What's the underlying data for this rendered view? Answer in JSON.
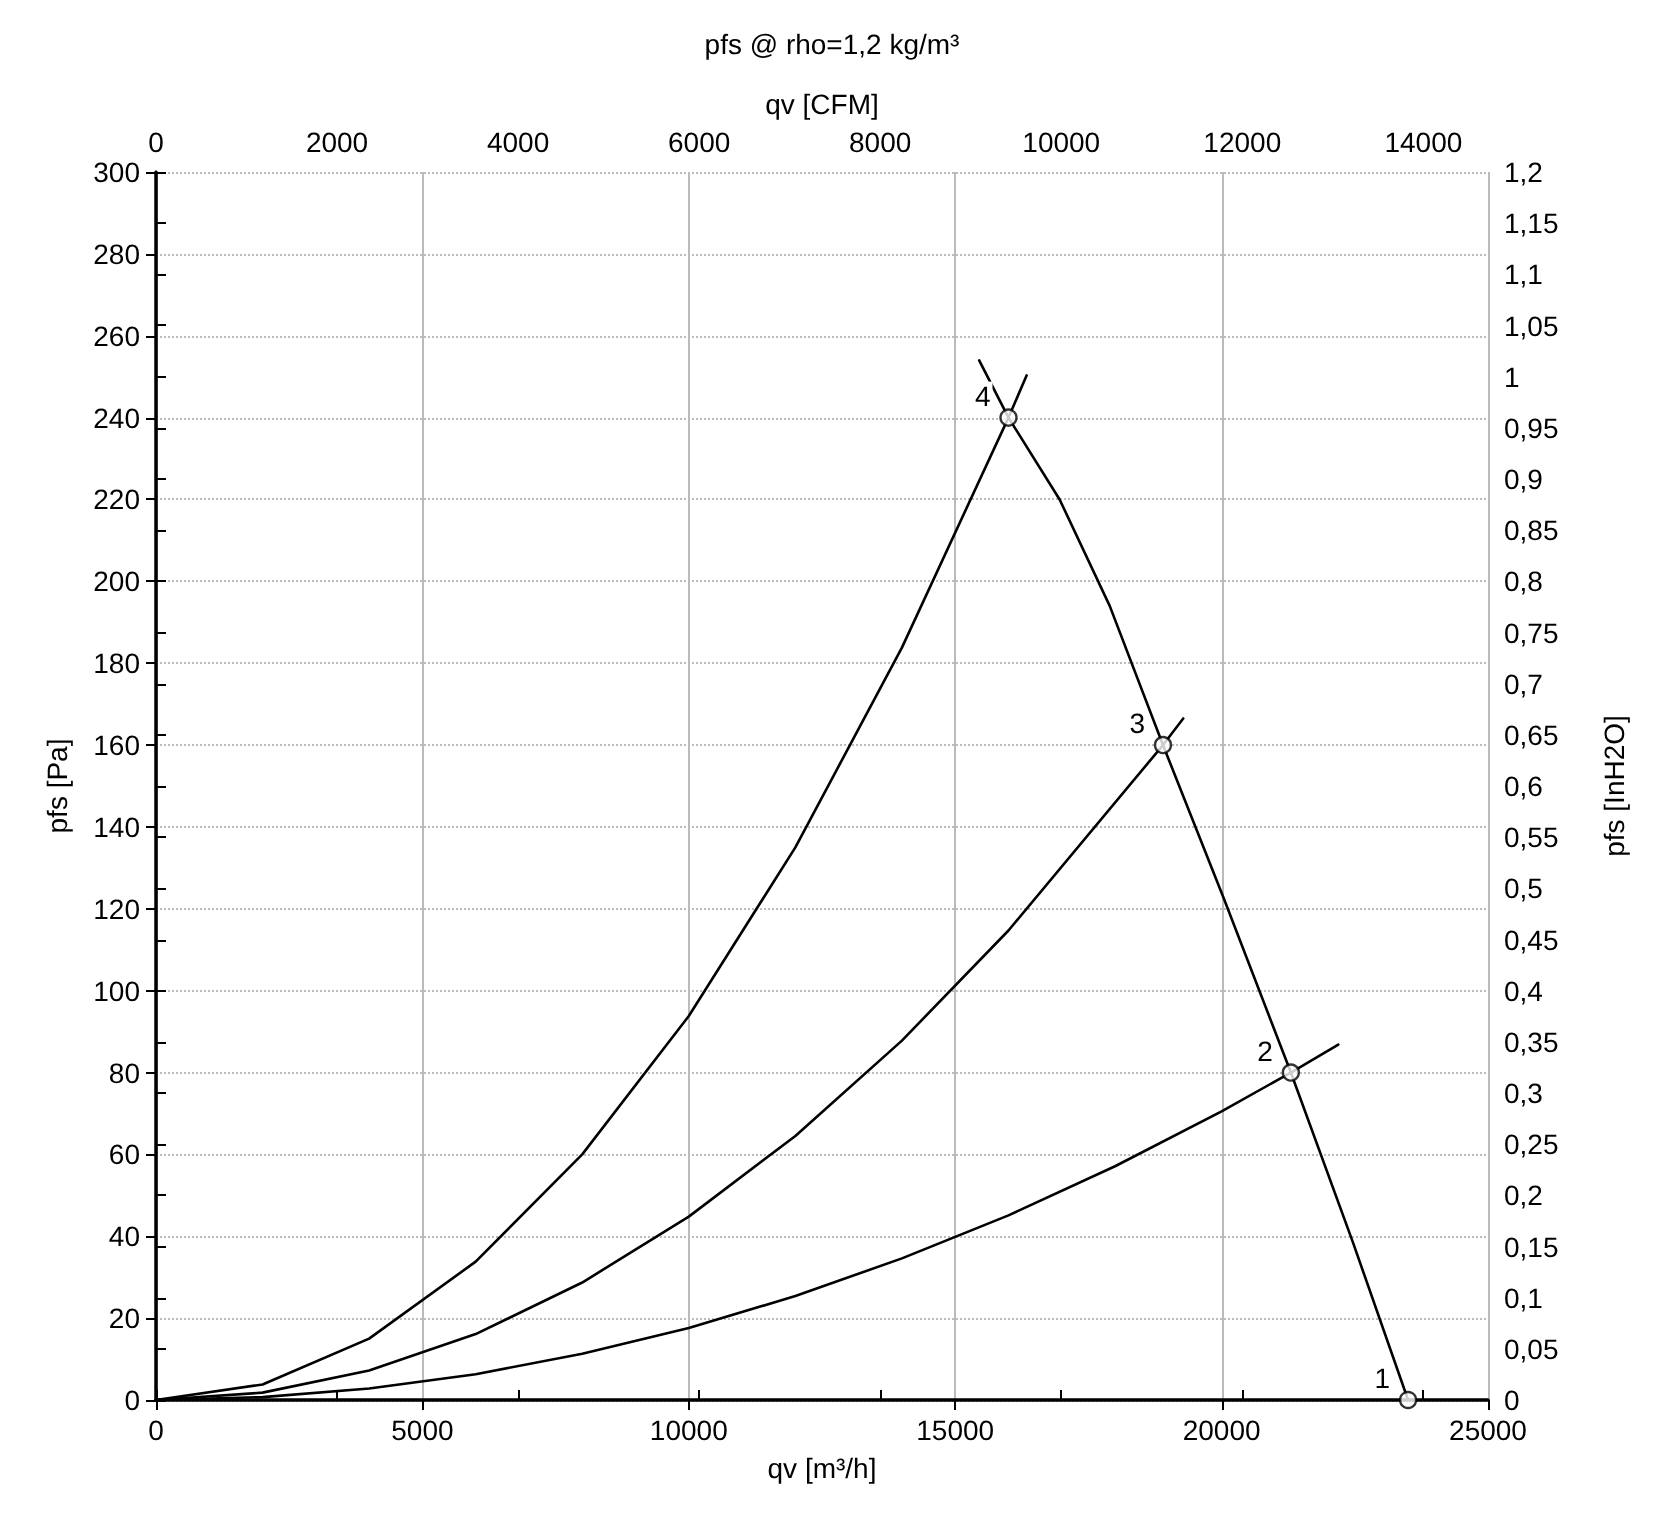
{
  "chart_data": {
    "type": "line",
    "title": "pfs @ rho=1,2 kg/m³",
    "xlabel": "qv [m³/h]",
    "x2label": "qv [CFM]",
    "ylabel": "pfs [Pa]",
    "y2label": "pfs [InH2O]",
    "xlim": [
      0,
      25000
    ],
    "xticks": [
      0,
      5000,
      10000,
      15000,
      20000,
      25000
    ],
    "x2lim": [
      0,
      14714
    ],
    "x2ticks": [
      0,
      2000,
      4000,
      6000,
      8000,
      10000,
      12000,
      14000
    ],
    "ylim": [
      0,
      300
    ],
    "yticks": [
      0,
      20,
      40,
      60,
      80,
      100,
      120,
      140,
      160,
      180,
      200,
      220,
      240,
      260,
      280,
      300
    ],
    "y2lim": [
      0,
      1.2
    ],
    "y2ticks": [
      0,
      {
        "value": 0.05,
        "label": "0,05"
      },
      {
        "value": 0.1,
        "label": "0,1"
      },
      {
        "value": 0.15,
        "label": "0,15"
      },
      {
        "value": 0.2,
        "label": "0,2"
      },
      {
        "value": 0.25,
        "label": "0,25"
      },
      {
        "value": 0.3,
        "label": "0,3"
      },
      {
        "value": 0.35,
        "label": "0,35"
      },
      {
        "value": 0.4,
        "label": "0,4"
      },
      {
        "value": 0.45,
        "label": "0,45"
      },
      {
        "value": 0.5,
        "label": "0,5"
      },
      {
        "value": 0.55,
        "label": "0,55"
      },
      {
        "value": 0.6,
        "label": "0,6"
      },
      {
        "value": 0.65,
        "label": "0,65"
      },
      {
        "value": 0.7,
        "label": "0,7"
      },
      {
        "value": 0.75,
        "label": "0,75"
      },
      {
        "value": 0.8,
        "label": "0,8"
      },
      {
        "value": 0.85,
        "label": "0,85"
      },
      {
        "value": 0.9,
        "label": "0,9"
      },
      {
        "value": 0.95,
        "label": "0,95"
      },
      1,
      {
        "value": 1.05,
        "label": "1,05"
      },
      {
        "value": 1.1,
        "label": "1,1"
      },
      {
        "value": 1.15,
        "label": "1,15"
      },
      {
        "value": 1.2,
        "label": "1,2"
      }
    ],
    "grid": true,
    "marker": "none",
    "line_style": "solid",
    "annotations": [
      {
        "text": "1",
        "x": 23500,
        "y": 0
      },
      {
        "text": "2",
        "x": 21300,
        "y": 80
      },
      {
        "text": "3",
        "x": 18900,
        "y": 160
      },
      {
        "text": "4",
        "x": 16000,
        "y": 240
      }
    ],
    "series": [
      {
        "color": "#000000",
        "x": [
          0,
          2000,
          4000,
          6000,
          8000,
          10000,
          12000,
          14000,
          16000,
          16340
        ],
        "values": [
          0,
          3.8,
          15,
          33.8,
          60,
          93.8,
          135,
          183.8,
          240,
          250.3
        ]
      },
      {
        "color": "#000000",
        "x": [
          0,
          2000,
          4000,
          6000,
          8000,
          10000,
          12000,
          14000,
          16000,
          18900,
          19280
        ],
        "values": [
          0,
          1.8,
          7.2,
          16.1,
          28.7,
          44.8,
          64.5,
          87.8,
          114.7,
          160,
          166.5
        ]
      },
      {
        "color": "#000000",
        "x": [
          0,
          2000,
          4000,
          6000,
          8000,
          10000,
          12000,
          14000,
          16000,
          18000,
          20000,
          21300,
          22190
        ],
        "values": [
          0,
          0.7,
          2.8,
          6.3,
          11.3,
          17.6,
          25.4,
          34.6,
          45.1,
          57.1,
          70.5,
          80,
          86.8
        ]
      },
      {
        "color": "#000000",
        "x": [
          15450,
          16000,
          16960,
          17900,
          18900,
          20040,
          21300,
          22460,
          23500
        ],
        "values": [
          254,
          240,
          220,
          194,
          160,
          122.6,
          80,
          38.7,
          0
        ]
      },
      {
        "type": "scatter",
        "color": "#000000",
        "marker": "circle",
        "x": [
          23500,
          21300,
          18900,
          16000
        ],
        "values": [
          0,
          80,
          160,
          240
        ]
      }
    ]
  }
}
